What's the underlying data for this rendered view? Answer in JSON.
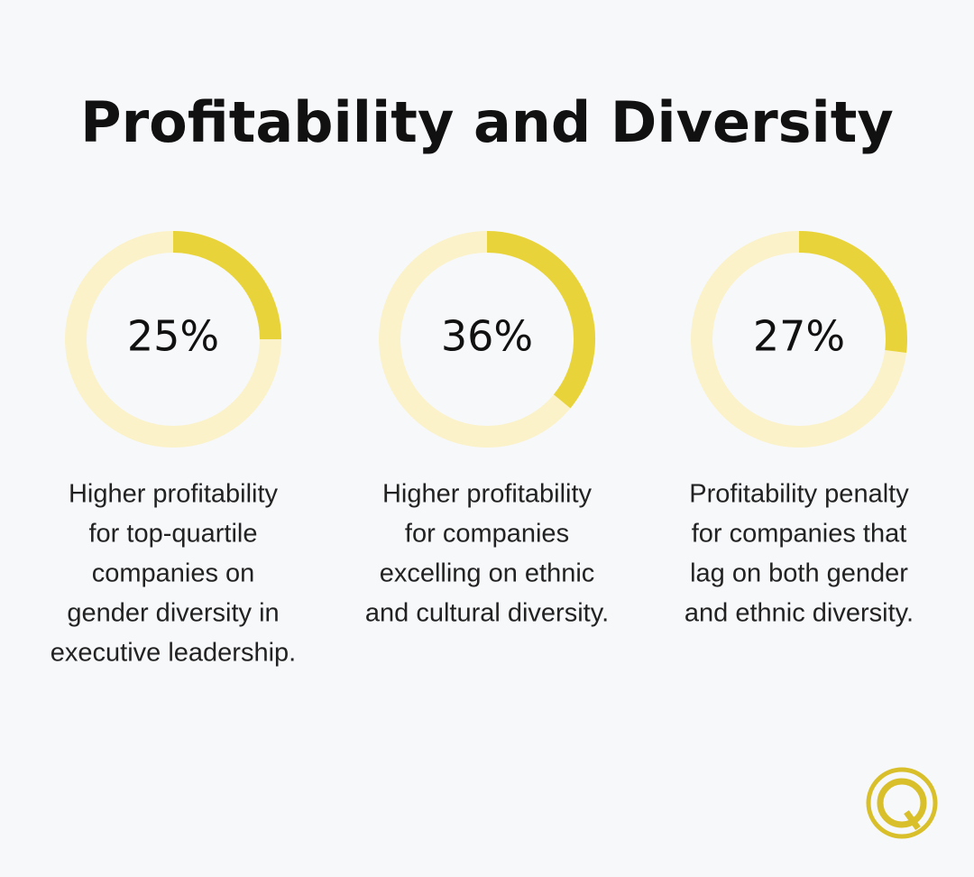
{
  "title": "Profitability and Diversity",
  "chart_data": [
    {
      "type": "donut",
      "values": [
        25
      ],
      "value_labels": [
        "25%"
      ],
      "ylim": [
        0,
        100
      ],
      "color": "#e8d43a",
      "track_color": "#fbf2c9",
      "caption": [
        "Higher profitability",
        "for top-quartile",
        "companies on",
        "gender diversity in",
        "executive leadership."
      ]
    },
    {
      "type": "donut",
      "values": [
        36
      ],
      "value_labels": [
        "36%"
      ],
      "ylim": [
        0,
        100
      ],
      "color": "#e8d43a",
      "track_color": "#fbf2c9",
      "caption": [
        "Higher profitability",
        "for companies",
        "excelling on ethnic",
        "and cultural diversity."
      ]
    },
    {
      "type": "donut",
      "values": [
        27
      ],
      "value_labels": [
        "27%"
      ],
      "ylim": [
        0,
        100
      ],
      "color": "#e8d43a",
      "track_color": "#fbf2c9",
      "caption": [
        "Profitability penalty",
        "for companies that",
        "lag on both gender",
        "and ethnic diversity."
      ]
    }
  ]
}
